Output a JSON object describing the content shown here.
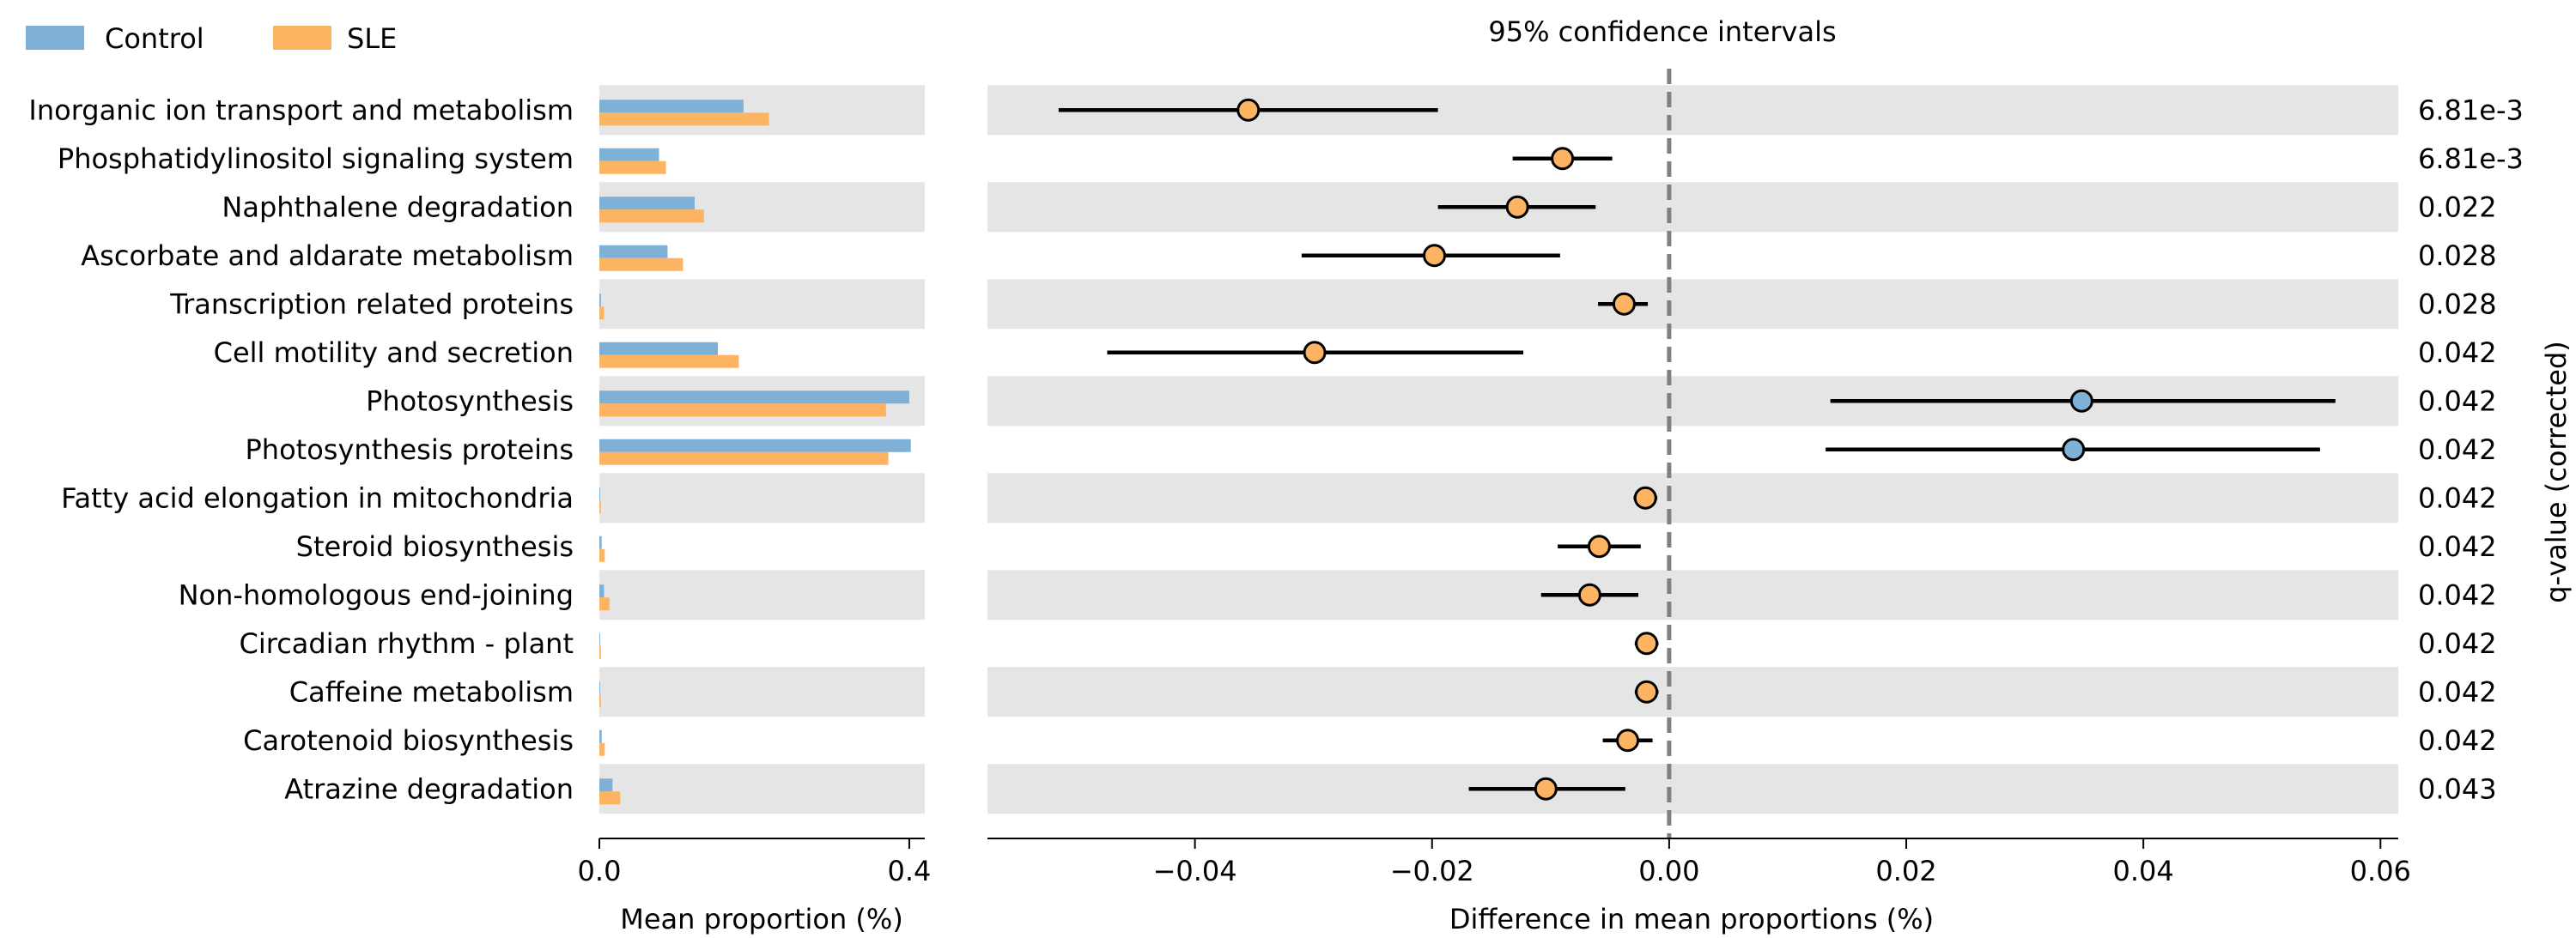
{
  "legend": [
    {
      "label": "Control",
      "color": "#7fb0d5"
    },
    {
      "label": "SLE",
      "color": "#fdb462"
    }
  ],
  "ci_title": "95% confidence intervals",
  "bar_xlabel": "Mean proportion (%)",
  "diff_xlabel": "Difference in mean proportions (%)",
  "qvalue_label": "q-value (corrected)",
  "colors": {
    "control": "#7fb0d5",
    "sle": "#fdb462",
    "stripe": "#e5e5e5",
    "zero_line": "#808080"
  },
  "chart_data": [
    {
      "type": "bar",
      "orientation": "horizontal",
      "xlabel": "Mean proportion (%)",
      "xlim": [
        0,
        0.42
      ],
      "xticks": [
        0.0,
        0.4
      ],
      "xtick_labels": [
        "0.0",
        "0.4"
      ],
      "categories": [
        "Inorganic ion transport and metabolism",
        "Phosphatidylinositol signaling system",
        "Naphthalene degradation",
        "Ascorbate and aldarate metabolism",
        "Transcription related proteins",
        "Cell motility and secretion",
        "Photosynthesis",
        "Photosynthesis proteins",
        "Fatty acid elongation in mitochondria",
        "Steroid biosynthesis",
        "Non-homologous end-joining",
        "Circadian rhythm - plant",
        "Caffeine metabolism",
        "Carotenoid biosynthesis",
        "Atrazine degradation"
      ],
      "series": [
        {
          "name": "Control",
          "values": [
            0.186,
            0.077,
            0.123,
            0.088,
            0.002,
            0.153,
            0.4,
            0.402,
            0.001,
            0.003,
            0.006,
            0.001,
            0.001,
            0.003,
            0.017
          ]
        },
        {
          "name": "SLE",
          "values": [
            0.219,
            0.086,
            0.135,
            0.108,
            0.006,
            0.18,
            0.37,
            0.373,
            0.002,
            0.007,
            0.013,
            0.002,
            0.002,
            0.007,
            0.027
          ]
        }
      ]
    },
    {
      "type": "scatter",
      "subtype": "confidence-interval",
      "title": "95% confidence intervals",
      "xlabel": "Difference in mean proportions (%)",
      "xlim": [
        -0.0575,
        0.0615
      ],
      "xticks": [
        -0.04,
        -0.02,
        0.0,
        0.02,
        0.04,
        0.06
      ],
      "xtick_labels": [
        "−0.04",
        "−0.02",
        "0.00",
        "0.02",
        "0.04",
        "0.06"
      ],
      "zero_line": true,
      "points": [
        {
          "diff": -0.0355,
          "low": -0.0515,
          "high": -0.0195,
          "group": "SLE",
          "qvalue": "6.81e-3"
        },
        {
          "diff": -0.009,
          "low": -0.0132,
          "high": -0.0048,
          "group": "SLE",
          "qvalue": "6.81e-3"
        },
        {
          "diff": -0.0128,
          "low": -0.0195,
          "high": -0.0062,
          "group": "SLE",
          "qvalue": "0.022"
        },
        {
          "diff": -0.0198,
          "low": -0.031,
          "high": -0.0092,
          "group": "SLE",
          "qvalue": "0.028"
        },
        {
          "diff": -0.0038,
          "low": -0.006,
          "high": -0.0018,
          "group": "SLE",
          "qvalue": "0.028"
        },
        {
          "diff": -0.0299,
          "low": -0.0474,
          "high": -0.0123,
          "group": "SLE",
          "qvalue": "0.042"
        },
        {
          "diff": 0.0348,
          "low": 0.0136,
          "high": 0.0562,
          "group": "Control",
          "qvalue": "0.042"
        },
        {
          "diff": 0.0341,
          "low": 0.0132,
          "high": 0.0549,
          "group": "Control",
          "qvalue": "0.042"
        },
        {
          "diff": -0.002,
          "low": -0.003,
          "high": -0.001,
          "group": "SLE",
          "qvalue": "0.042"
        },
        {
          "diff": -0.0059,
          "low": -0.0094,
          "high": -0.0024,
          "group": "SLE",
          "qvalue": "0.042"
        },
        {
          "diff": -0.0067,
          "low": -0.0108,
          "high": -0.0026,
          "group": "SLE",
          "qvalue": "0.042"
        },
        {
          "diff": -0.0019,
          "low": -0.0029,
          "high": -0.0009,
          "group": "SLE",
          "qvalue": "0.042"
        },
        {
          "diff": -0.0019,
          "low": -0.0029,
          "high": -0.0009,
          "group": "SLE",
          "qvalue": "0.042"
        },
        {
          "diff": -0.0035,
          "low": -0.0056,
          "high": -0.0014,
          "group": "SLE",
          "qvalue": "0.042"
        },
        {
          "diff": -0.0104,
          "low": -0.0169,
          "high": -0.0037,
          "group": "SLE",
          "qvalue": "0.043"
        }
      ]
    }
  ]
}
